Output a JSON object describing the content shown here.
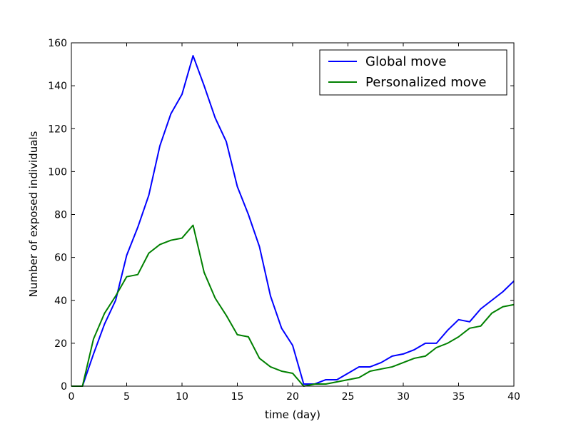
{
  "chart_data": {
    "type": "line",
    "title": "",
    "xlabel": "time (day)",
    "ylabel": "Number of exposed individuals",
    "xlim": [
      0,
      40
    ],
    "ylim": [
      0,
      160
    ],
    "xticks": [
      0,
      5,
      10,
      15,
      20,
      25,
      30,
      35,
      40
    ],
    "yticks": [
      0,
      20,
      40,
      60,
      80,
      100,
      120,
      140,
      160
    ],
    "grid": false,
    "legend_position": "top-right",
    "x": [
      0,
      1,
      2,
      3,
      4,
      5,
      6,
      7,
      8,
      9,
      10,
      11,
      12,
      13,
      14,
      15,
      16,
      17,
      18,
      19,
      20,
      21,
      22,
      23,
      24,
      25,
      26,
      27,
      28,
      29,
      30,
      31,
      32,
      33,
      34,
      35,
      36,
      37,
      38,
      39,
      40
    ],
    "series": [
      {
        "name": "Global move",
        "color": "#0000ff",
        "values": [
          0,
          0,
          15,
          29,
          40,
          61,
          74,
          89,
          112,
          127,
          136,
          154,
          140,
          125,
          114,
          93,
          80,
          65,
          42,
          27,
          19,
          1,
          1,
          3,
          3,
          6,
          9,
          9,
          11,
          14,
          15,
          17,
          20,
          20,
          26,
          31,
          30,
          36,
          40,
          44,
          49
        ]
      },
      {
        "name": "Personalized move",
        "color": "#008000",
        "values": [
          0,
          0,
          22,
          34,
          42,
          51,
          52,
          62,
          66,
          68,
          69,
          75,
          53,
          41,
          33,
          24,
          23,
          13,
          9,
          7,
          6,
          0,
          1,
          1,
          2,
          3,
          4,
          7,
          8,
          9,
          11,
          13,
          14,
          18,
          20,
          23,
          27,
          28,
          34,
          37,
          38
        ]
      }
    ]
  }
}
